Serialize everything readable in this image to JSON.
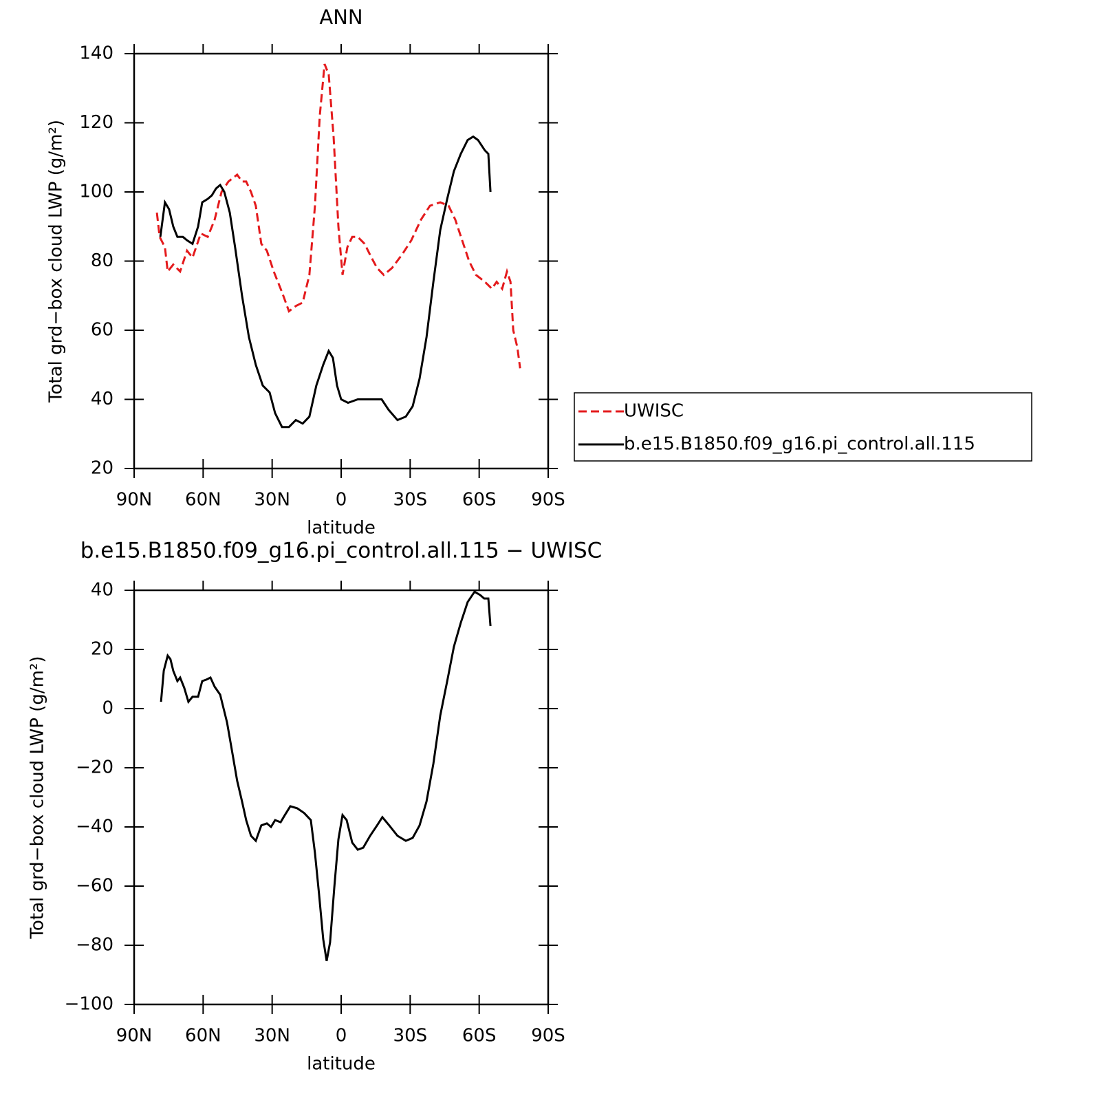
{
  "chart_data": [
    {
      "type": "line",
      "title": "ANN",
      "xlabel": "latitude",
      "ylabel": "Total grd−box cloud LWP (g/m²)",
      "xlim": [
        90,
        -90
      ],
      "xticks": [
        {
          "value": 90,
          "label": "90N"
        },
        {
          "value": 60,
          "label": "60N"
        },
        {
          "value": 30,
          "label": "30N"
        },
        0,
        {
          "value": -30,
          "label": "30S"
        },
        {
          "value": -60,
          "label": "60S"
        },
        {
          "value": -90,
          "label": "90S"
        }
      ],
      "ylim": [
        20,
        140
      ],
      "yticks": [
        20,
        40,
        60,
        80,
        100,
        120,
        140
      ],
      "legend": "right",
      "series": [
        {
          "name": "UWISC",
          "color": "#e41a1c",
          "dashed": true,
          "x": [
            80.1,
            78.9,
            76.6,
            75.4,
            73.0,
            70.0,
            67.0,
            64.6,
            61.0,
            58.0,
            55.0,
            52.0,
            49.0,
            45.2,
            43.1,
            41.3,
            39.2,
            37.1,
            34.7,
            32.3,
            29.3,
            25.7,
            22.7,
            19.7,
            16.7,
            13.8,
            11.4,
            9.3,
            7.2,
            5.4,
            3.3,
            1.2,
            -0.6,
            -2.7,
            -4.8,
            -7.2,
            -10.2,
            -13.2,
            -15.6,
            -18.5,
            -22.1,
            -26.6,
            -30.5,
            -34.7,
            -38.6,
            -43.1,
            -46.7,
            -49.6,
            -52.6,
            -55.6,
            -58.6,
            -62.5,
            -65.5,
            -67.6,
            -70.0,
            -72.1,
            -73.6,
            -74.8,
            -76.6,
            -77.8
          ],
          "values": [
            94,
            87,
            84,
            77,
            79,
            77,
            83,
            81,
            88,
            87,
            92,
            100,
            103,
            105,
            103,
            103,
            100,
            96,
            85,
            83,
            77,
            71,
            65.5,
            67,
            68,
            76,
            96,
            122,
            137,
            134,
            116,
            90,
            76,
            84,
            87,
            87,
            85,
            81,
            78,
            76,
            78,
            82,
            86,
            92,
            96,
            97,
            96,
            92,
            86,
            80,
            76,
            74,
            72,
            74,
            72,
            77,
            74,
            60,
            55,
            49
          ]
        },
        {
          "name": "b.e15.B1850.f09_g16.pi_control.all.115",
          "color": "#000000",
          "dashed": false,
          "x": [
            78.6,
            76.6,
            74.8,
            73.0,
            71.2,
            68.8,
            67.0,
            64.6,
            62.2,
            60.4,
            58.0,
            56.2,
            54.4,
            52.6,
            50.8,
            48.4,
            46.1,
            43.1,
            40.1,
            37.1,
            34.1,
            31.1,
            28.7,
            25.7,
            22.7,
            19.7,
            16.7,
            13.8,
            10.8,
            7.8,
            5.4,
            3.6,
            1.8,
            0,
            -3.0,
            -7.2,
            -13.2,
            -17.6,
            -20.6,
            -24.5,
            -28.1,
            -31.1,
            -34.1,
            -37.1,
            -40.1,
            -43.1,
            -46.1,
            -49.0,
            -52.0,
            -55.0,
            -57.4,
            -59.5,
            -62.5,
            -64.0,
            -64.9
          ],
          "values": [
            87,
            97,
            95,
            90,
            87,
            87,
            86,
            85,
            90,
            97,
            98,
            99,
            101,
            102,
            100,
            94,
            84,
            70,
            58,
            50,
            44,
            42,
            36,
            32,
            32,
            34,
            33,
            35,
            44,
            50,
            54,
            52,
            44,
            40,
            39,
            40,
            40,
            40,
            37,
            34,
            35,
            38,
            46,
            58,
            74,
            89,
            98,
            106,
            111,
            115,
            116,
            115,
            112,
            111,
            100
          ]
        }
      ]
    },
    {
      "type": "line",
      "title": "b.e15.B1850.f09_g16.pi_control.all.115 − UWISC",
      "xlabel": "latitude",
      "ylabel": "Total grd−box cloud LWP (g/m²)",
      "xlim": [
        90,
        -90
      ],
      "xticks": [
        {
          "value": 90,
          "label": "90N"
        },
        {
          "value": 60,
          "label": "60N"
        },
        {
          "value": 30,
          "label": "30N"
        },
        0,
        {
          "value": -30,
          "label": "30S"
        },
        {
          "value": -60,
          "label": "60S"
        },
        {
          "value": -90,
          "label": "90S"
        }
      ],
      "ylim": [
        -100,
        40
      ],
      "yticks": [
        {
          "value": -100,
          "label": "−100"
        },
        {
          "value": -80,
          "label": "−80"
        },
        {
          "value": -60,
          "label": "−60"
        },
        {
          "value": -40,
          "label": "−40"
        },
        {
          "value": -20,
          "label": "−20"
        },
        0,
        20,
        40
      ],
      "series": [
        {
          "color": "#000000",
          "dashed": false,
          "x": [
            78.3,
            77.1,
            75.4,
            74.2,
            73.0,
            71.2,
            70.0,
            68.2,
            66.4,
            64.6,
            62.2,
            60.4,
            58.6,
            56.8,
            55.0,
            52.6,
            49.6,
            47.5,
            45.2,
            43.1,
            41.3,
            39.2,
            37.1,
            34.7,
            32.3,
            30.5,
            28.7,
            26.3,
            24.5,
            22.1,
            19.1,
            16.1,
            13.2,
            11.4,
            9.6,
            7.8,
            6.3,
            4.8,
            3.0,
            1.2,
            -0.6,
            -2.4,
            -4.8,
            -7.2,
            -9.6,
            -12.6,
            -15.6,
            -17.9,
            -20.9,
            -24.5,
            -28.1,
            -31.1,
            -34.1,
            -37.1,
            -40.1,
            -43.1,
            -46.1,
            -49.0,
            -52.0,
            -55.0,
            -58.0,
            -60.4,
            -62.2,
            -64.0,
            -64.9
          ],
          "values": [
            2.3,
            12.8,
            17.9,
            16.7,
            12.8,
            9.3,
            10.5,
            7,
            2.3,
            4,
            4,
            9.3,
            9.8,
            10.5,
            7.4,
            4.7,
            -4.7,
            -14,
            -24.4,
            -31.4,
            -37.7,
            -43,
            -44.7,
            -39.5,
            -38.8,
            -40,
            -37.7,
            -38.4,
            -36,
            -33,
            -33.7,
            -35.3,
            -37.7,
            -48.8,
            -62.8,
            -77.9,
            -85.3,
            -79,
            -60.5,
            -44.2,
            -36,
            -37.7,
            -45.3,
            -47.7,
            -47,
            -43,
            -39.5,
            -36.7,
            -39.5,
            -43,
            -44.7,
            -43.7,
            -39.5,
            -31.4,
            -18.6,
            -2.3,
            9.3,
            20.9,
            29,
            36,
            39.5,
            38.4,
            37.2,
            37.2,
            27.9
          ]
        }
      ]
    }
  ]
}
